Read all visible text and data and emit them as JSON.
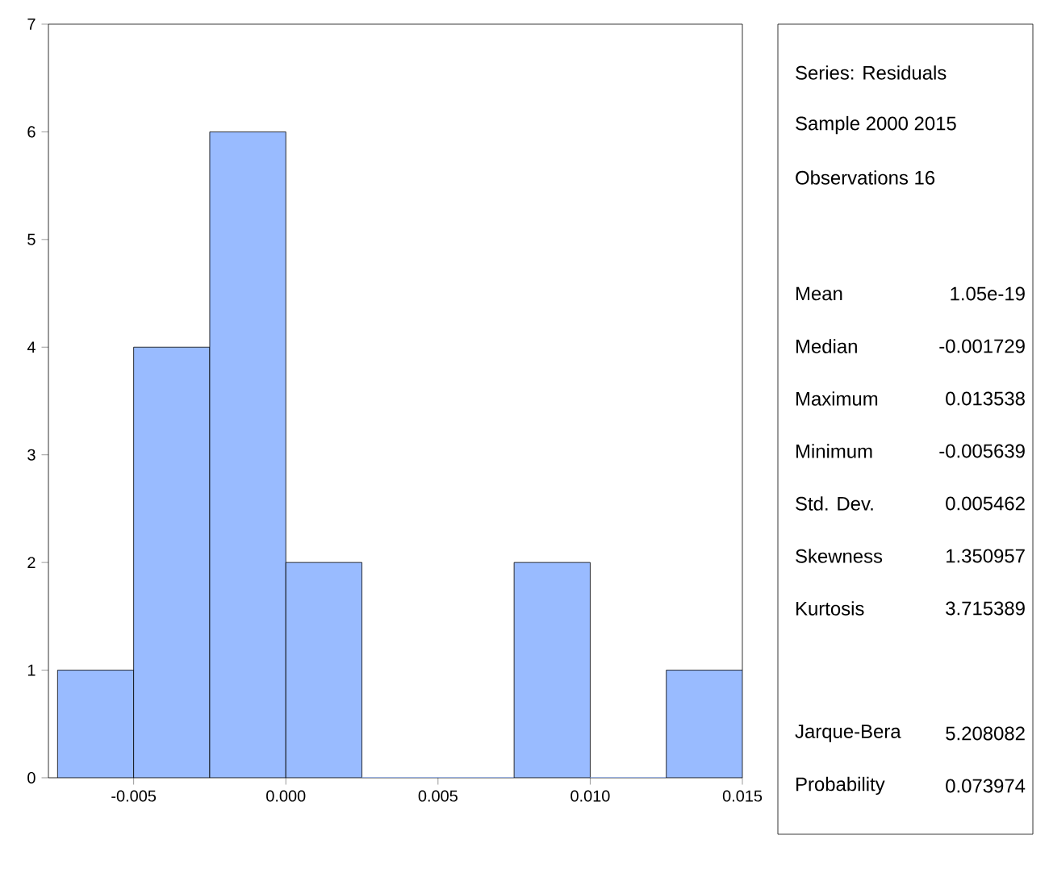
{
  "chart_data": {
    "type": "histogram",
    "bins": [
      -0.0075,
      -0.005,
      -0.0025,
      0.0,
      0.0025,
      0.005,
      0.0075,
      0.01,
      0.0125,
      0.015
    ],
    "values": [
      1,
      4,
      6,
      2,
      0,
      0,
      2,
      0,
      1
    ],
    "color": "#99bbff",
    "xlim": [
      -0.0078,
      0.015
    ],
    "xticks": [
      {
        "value": -0.005,
        "label": "-0.005"
      },
      {
        "value": 0.0,
        "label": "0.000"
      },
      {
        "value": 0.005,
        "label": "0.005"
      },
      {
        "value": 0.01,
        "label": "0.010"
      },
      {
        "value": 0.015,
        "label": "0.015"
      }
    ],
    "ylim": [
      0,
      7
    ],
    "yticks": [
      0,
      1,
      2,
      3,
      4,
      5,
      6,
      7
    ],
    "annotations": [
      "Series: Residuals",
      "Sample 2000 2015",
      "Observations 16",
      "Mean",
      "1.05e-19",
      "Median",
      "-0.001729",
      "Maximum",
      "0.013538",
      "Minimum",
      "-0.005639",
      "Std. Dev.",
      "0.005462",
      "Skewness",
      "1.350957",
      "Kurtosis",
      "3.715389",
      "Jarque-Bera",
      "5.208082",
      "Probability",
      "0.073974"
    ]
  }
}
